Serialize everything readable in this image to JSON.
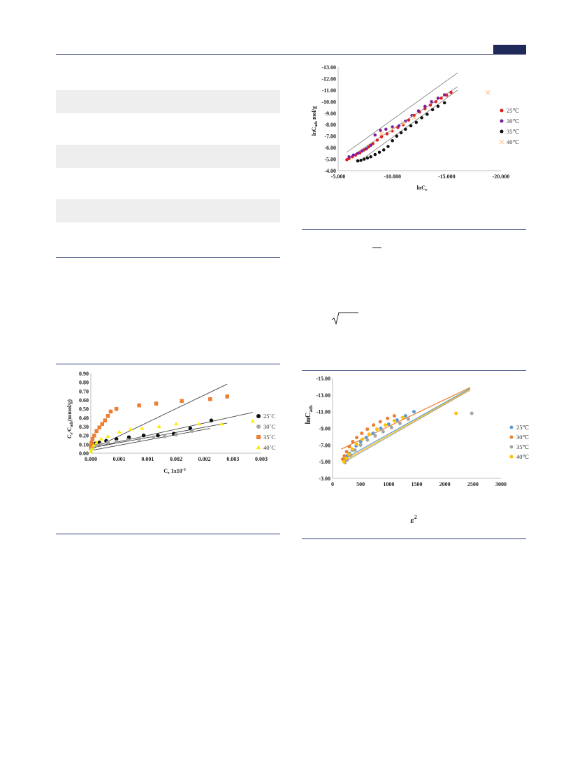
{
  "colors": {
    "header_bar": "#1f2a5a",
    "gray_band": "#eeeeee",
    "rule": "#2a3a70"
  },
  "figure_langmuir": {
    "xlabel_main": "C",
    "xlabel_sub": "e",
    "xlabel_suffix": " 1x10",
    "xlabel_sup": "-3",
    "ylabel_main": "C",
    "ylabel_sub1": "e",
    "ylabel_mid": "/C",
    "ylabel_sub2": "ads",
    "ylabel_suffix": "(mmol/g)"
  },
  "figure_freundlich": {
    "xlabel_main": "lnC",
    "xlabel_sub": "e",
    "ylabel_main": "lnC",
    "ylabel_sub": "ads",
    "ylabel_suffix": " mol/g"
  },
  "figure_dr": {
    "xlabel_main": "ε",
    "xlabel_sup": "2",
    "ylabel_main": "lnC",
    "ylabel_sub": "ads"
  },
  "chart_data": [
    {
      "id": "langmuir",
      "type": "scatter",
      "xlim": [
        0.0,
        0.003
      ],
      "ylim": [
        0.0,
        0.9
      ],
      "x_ticks": [
        "0.000",
        "0.001",
        "0.001",
        "0.002",
        "0.002",
        "0.003",
        "0.003"
      ],
      "x_tick_values": [
        0.0,
        0.0005,
        0.001,
        0.0015,
        0.002,
        0.0025,
        0.003
      ],
      "y_ticks": [
        "0.00",
        "0.10",
        "0.20",
        "0.30",
        "0.40",
        "0.50",
        "0.60",
        "0.70",
        "0.80",
        "0.90"
      ],
      "y_tick_values": [
        0.0,
        0.1,
        0.2,
        0.3,
        0.4,
        0.5,
        0.6,
        0.7,
        0.8,
        0.9
      ],
      "legend_position": "right",
      "series": [
        {
          "name": "25˚C",
          "color": "#111111",
          "marker": "circle",
          "x": [
            0.0,
            3e-05,
            8e-05,
            0.00015,
            0.00027,
            0.00045,
            0.00067,
            0.00093,
            0.00118,
            0.00146,
            0.00175,
            0.00212
          ],
          "y": [
            0.08,
            0.1,
            0.11,
            0.12,
            0.14,
            0.16,
            0.18,
            0.2,
            0.2,
            0.22,
            0.28,
            0.37
          ],
          "fit": [
            [
              0.0,
              0.06
            ],
            [
              0.00285,
              0.46
            ]
          ]
        },
        {
          "name": "30˚C",
          "color": "#a6a6a6",
          "marker": "circle",
          "x": [
            0.0,
            4e-05,
            0.0001,
            0.00018,
            0.0003,
            0.00045,
            0.00065,
            0.00085,
            0.0011,
            0.0013,
            0.0015,
            0.00178
          ],
          "y": [
            0.05,
            0.07,
            0.09,
            0.1,
            0.12,
            0.13,
            0.15,
            0.16,
            0.18,
            0.19,
            0.21,
            0.25
          ],
          "fit": [
            [
              0.0,
              0.03
            ],
            [
              0.0021,
              0.28
            ]
          ]
        },
        {
          "name": "35˚C",
          "color": "#ed7d31",
          "marker": "square",
          "x": [
            0.0,
            1e-05,
            3e-05,
            6e-05,
            0.0001,
            0.00015,
            0.0002,
            0.00025,
            0.0003,
            0.00035,
            0.00045,
            0.00085,
            0.00115,
            0.0016,
            0.0021,
            0.0024
          ],
          "y": [
            0.08,
            0.12,
            0.16,
            0.2,
            0.25,
            0.29,
            0.33,
            0.37,
            0.42,
            0.47,
            0.5,
            0.54,
            0.56,
            0.59,
            0.61,
            0.64
          ],
          "fit": [
            [
              0.0,
              0.04
            ],
            [
              0.0024,
              0.78
            ]
          ]
        },
        {
          "name": "40˚C",
          "color": "#ffeb00",
          "marker": "triangle",
          "x": [
            0.0,
            2e-05,
            5e-05,
            0.0001,
            0.00018,
            0.0003,
            0.0005,
            0.0007,
            0.0009,
            0.0012,
            0.0015,
            0.0019,
            0.0023,
            0.00285
          ],
          "y": [
            0.02,
            0.05,
            0.09,
            0.12,
            0.16,
            0.19,
            0.24,
            0.27,
            0.28,
            0.3,
            0.33,
            0.33,
            0.33,
            0.36
          ],
          "fit": [
            [
              0.0,
              0.06
            ],
            [
              0.0024,
              0.34
            ]
          ]
        }
      ]
    },
    {
      "id": "freundlich",
      "type": "scatter",
      "xlim": [
        -5.0,
        -20.0
      ],
      "ylim": [
        -4.0,
        -13.0
      ],
      "x_ticks": [
        "-5.000",
        "-10.000",
        "-15.000",
        "-20.000"
      ],
      "x_tick_values": [
        -5,
        -10,
        -15,
        -20
      ],
      "y_ticks": [
        "-4.00",
        "-5.00",
        "-6.00",
        "-7.00",
        "-8.00",
        "-9.00",
        "-10.00",
        "-11.00",
        "-12.00",
        "-13.00"
      ],
      "y_tick_values": [
        -4,
        -5,
        -6,
        -7,
        -8,
        -9,
        -10,
        -11,
        -12,
        -13
      ],
      "legend_position": "right",
      "series": [
        {
          "name": "25℃",
          "color": "#e02020",
          "marker": "circle",
          "x": [
            -5.8,
            -6.0,
            -6.3,
            -6.6,
            -7.0,
            -7.4,
            -7.8,
            -8.2,
            -8.6,
            -9.0,
            -9.5,
            -10.0,
            -10.5,
            -11.0,
            -11.5,
            -12.0,
            -12.5,
            -13.0,
            -13.5,
            -14.0,
            -14.5,
            -15.0,
            -15.4
          ],
          "y": [
            -4.95,
            -5.05,
            -5.2,
            -5.35,
            -5.55,
            -5.8,
            -6.05,
            -6.35,
            -6.65,
            -6.95,
            -7.2,
            -7.45,
            -7.75,
            -8.0,
            -8.4,
            -8.8,
            -9.1,
            -9.4,
            -9.7,
            -10.0,
            -10.3,
            -10.55,
            -10.8
          ],
          "fit": [
            [
              -5.8,
              -5.0
            ],
            [
              -16.0,
              -11.3
            ]
          ]
        },
        {
          "name": "30℃",
          "color": "#7a1fa2",
          "marker": "circle",
          "x": [
            -6.0,
            -6.4,
            -6.8,
            -7.2,
            -7.6,
            -8.0,
            -8.4,
            -8.9,
            -9.4,
            -10.0,
            -10.6,
            -11.2,
            -11.8,
            -12.4,
            -13.0,
            -13.6,
            -14.2,
            -14.8
          ],
          "y": [
            -5.2,
            -5.35,
            -5.5,
            -5.7,
            -5.9,
            -6.2,
            -7.1,
            -7.5,
            -7.6,
            -7.8,
            -7.9,
            -8.3,
            -8.8,
            -9.2,
            -9.6,
            -10.0,
            -10.3,
            -10.6
          ],
          "fit": [
            [
              -5.8,
              -5.6
            ],
            [
              -16.0,
              -12.5
            ]
          ]
        },
        {
          "name": "35℃",
          "color": "#111111",
          "marker": "circle",
          "x": [
            -6.8,
            -7.1,
            -7.4,
            -7.7,
            -8.0,
            -8.4,
            -8.8,
            -9.2,
            -9.6,
            -10.0,
            -10.4,
            -10.8,
            -11.2,
            -11.7,
            -12.2,
            -12.7,
            -13.2,
            -13.7,
            -14.2,
            -14.8
          ],
          "y": [
            -4.85,
            -4.9,
            -5.0,
            -5.1,
            -5.2,
            -5.4,
            -5.6,
            -5.8,
            -6.1,
            -6.6,
            -7.0,
            -7.3,
            -7.6,
            -7.9,
            -8.2,
            -8.6,
            -8.9,
            -9.3,
            -9.6,
            -9.9
          ],
          "fit": [
            [
              -6.8,
              -4.7
            ],
            [
              -16.0,
              -11.0
            ]
          ]
        },
        {
          "name": "40℃",
          "color": "#ffc78a",
          "marker": "x",
          "x": [
            -9.0,
            -10.0,
            -11.0,
            -12.0,
            -18.8
          ],
          "y": [
            -7.2,
            -7.6,
            -8.1,
            -8.6,
            -10.8
          ],
          "fit": []
        }
      ]
    },
    {
      "id": "dubinin_radushkevich",
      "type": "scatter",
      "xlim": [
        0,
        3000
      ],
      "ylim": [
        -3.0,
        -15.0
      ],
      "x_ticks": [
        "0",
        "500",
        "1000",
        "1500",
        "2000",
        "2500",
        "3000"
      ],
      "x_tick_values": [
        0,
        500,
        1000,
        1500,
        2000,
        2500,
        3000
      ],
      "y_ticks": [
        "-3.00",
        "-5.00",
        "-7.00",
        "-9.00",
        "-11.00",
        "-13.00",
        "-15.00"
      ],
      "y_tick_values": [
        -3,
        -5,
        -7,
        -9,
        -11,
        -13,
        -15
      ],
      "legend_position": "right",
      "series": [
        {
          "name": "25℃",
          "color": "#5b9bd5",
          "marker": "circle",
          "x": [
            200,
            230,
            260,
            300,
            350,
            420,
            500,
            600,
            720,
            860,
            1000,
            1150,
            1300,
            1450
          ],
          "y": [
            -5.2,
            -5.4,
            -5.7,
            -6.0,
            -6.4,
            -6.9,
            -7.4,
            -7.9,
            -8.4,
            -9.0,
            -9.5,
            -10.0,
            -10.5,
            -11.0
          ],
          "fit": [
            [
              200,
              -5.3
            ],
            [
              2450,
              -13.8
            ]
          ]
        },
        {
          "name": "30℃",
          "color": "#ed7d31",
          "marker": "circle",
          "x": [
            180,
            210,
            250,
            300,
            360,
            430,
            520,
            620,
            730,
            850,
            980,
            1100
          ],
          "y": [
            -5.3,
            -5.7,
            -6.2,
            -6.8,
            -7.4,
            -7.9,
            -8.4,
            -8.9,
            -9.4,
            -9.8,
            -10.2,
            -10.5
          ],
          "fit": [
            [
              150,
              -6.5
            ],
            [
              2450,
              -13.9
            ]
          ]
        },
        {
          "name": "35℃",
          "color": "#a5a5a5",
          "marker": "circle",
          "x": [
            220,
            260,
            320,
            400,
            500,
            620,
            760,
            900,
            1050,
            1200,
            1350,
            2480
          ],
          "y": [
            -4.9,
            -5.2,
            -5.8,
            -6.4,
            -7.0,
            -7.6,
            -8.1,
            -8.6,
            -9.1,
            -9.6,
            -10.1,
            -10.8
          ],
          "fit": [
            [
              220,
              -5.0
            ],
            [
              2450,
              -13.6
            ]
          ]
        },
        {
          "name": "40℃",
          "color": "#ffc000",
          "marker": "circle",
          "x": [
            200,
            240,
            290,
            350,
            430,
            530,
            650,
            790,
            940,
            1100,
            1250,
            2200
          ],
          "y": [
            -5.0,
            -5.4,
            -5.9,
            -6.5,
            -7.1,
            -7.7,
            -8.3,
            -8.9,
            -9.4,
            -9.9,
            -10.3,
            -10.8
          ],
          "fit": [
            [
              200,
              -5.1
            ],
            [
              2450,
              -13.7
            ]
          ]
        }
      ]
    }
  ]
}
